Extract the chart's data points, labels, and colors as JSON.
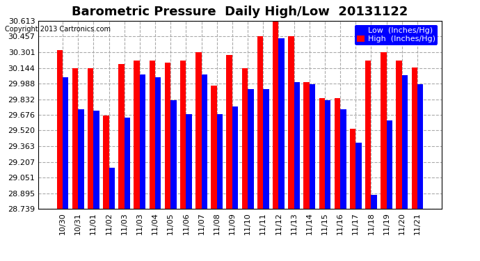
{
  "title": "Barometric Pressure  Daily High/Low  20131122",
  "copyright": "Copyright 2013 Cartronics.com",
  "legend_low": "Low  (Inches/Hg)",
  "legend_high": "High  (Inches/Hg)",
  "categories": [
    "10/30",
    "10/31",
    "11/01",
    "11/02",
    "11/03",
    "11/03",
    "11/04",
    "11/05",
    "11/06",
    "11/07",
    "11/08",
    "11/09",
    "11/10",
    "11/11",
    "11/12",
    "11/13",
    "11/14",
    "11/15",
    "11/16",
    "11/17",
    "11/18",
    "11/19",
    "11/20",
    "11/21"
  ],
  "high_values": [
    30.32,
    30.14,
    30.14,
    29.67,
    30.18,
    30.22,
    30.22,
    30.2,
    30.22,
    30.3,
    29.97,
    30.27,
    30.14,
    30.46,
    30.63,
    30.46,
    30.0,
    29.84,
    29.84,
    29.54,
    30.22,
    30.3,
    30.22,
    30.15
  ],
  "low_values": [
    30.05,
    29.73,
    29.72,
    29.15,
    29.65,
    30.08,
    30.05,
    29.82,
    29.68,
    30.08,
    29.68,
    29.76,
    29.93,
    29.93,
    30.44,
    30.0,
    29.98,
    29.82,
    29.73,
    29.4,
    28.88,
    29.62,
    30.07,
    29.98
  ],
  "ylim_min": 28.739,
  "ylim_max": 30.613,
  "yticks": [
    28.739,
    28.895,
    29.051,
    29.207,
    29.363,
    29.52,
    29.676,
    29.832,
    29.988,
    30.144,
    30.301,
    30.457,
    30.613
  ],
  "bar_color_high": "#ff0000",
  "bar_color_low": "#0000ff",
  "background_color": "#ffffff",
  "grid_color": "#aaaaaa",
  "title_fontsize": 13,
  "tick_fontsize": 8,
  "legend_fontsize": 8
}
